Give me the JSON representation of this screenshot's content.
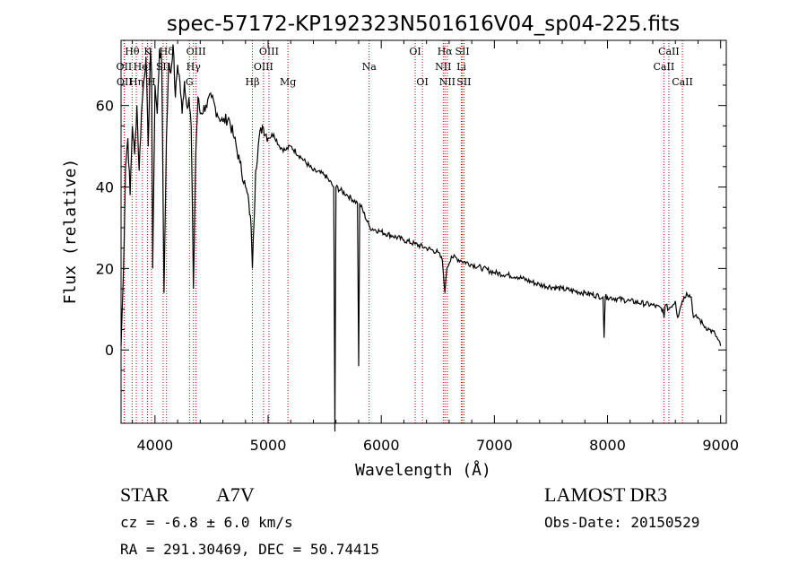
{
  "chart_data": {
    "type": "line",
    "title": "spec-57172-KP192323N501616V04_sp04-225.fits",
    "xlabel": "Wavelength (Å)",
    "ylabel": "Flux (relative)",
    "xlim": [
      3700,
      9050
    ],
    "ylim": [
      -18,
      76
    ],
    "xticks": [
      4000,
      5000,
      6000,
      7000,
      8000,
      9000
    ],
    "yticks": [
      0,
      20,
      40,
      60
    ],
    "line_color": "#000000",
    "marker_color": "#cc0000",
    "series": [
      {
        "name": "spectrum",
        "x": [
          3700,
          3720,
          3740,
          3760,
          3780,
          3800,
          3820,
          3840,
          3860,
          3880,
          3900,
          3920,
          3940,
          3960,
          3970,
          3980,
          4000,
          4020,
          4040,
          4060,
          4080,
          4101,
          4120,
          4140,
          4160,
          4180,
          4200,
          4220,
          4240,
          4260,
          4280,
          4300,
          4320,
          4340,
          4360,
          4380,
          4400,
          4450,
          4500,
          4550,
          4600,
          4650,
          4700,
          4750,
          4800,
          4830,
          4850,
          4861,
          4870,
          4890,
          4920,
          4950,
          5000,
          5050,
          5100,
          5150,
          5200,
          5300,
          5400,
          5500,
          5580,
          5590,
          5600,
          5700,
          5790,
          5800,
          5810,
          5900,
          6000,
          6100,
          6200,
          6300,
          6400,
          6500,
          6540,
          6563,
          6580,
          6620,
          6700,
          6800,
          6900,
          7000,
          7200,
          7400,
          7600,
          7800,
          7960,
          7970,
          7980,
          8000,
          8200,
          8400,
          8490,
          8500,
          8510,
          8540,
          8600,
          8620,
          8640,
          8660,
          8700,
          8740,
          8760,
          8800,
          8850,
          8900,
          8950,
          9000
        ],
        "y": [
          1,
          18,
          45,
          52,
          38,
          55,
          48,
          60,
          44,
          58,
          66,
          72,
          50,
          74,
          68,
          20,
          65,
          58,
          74,
          70,
          14,
          52,
          70,
          68,
          75,
          62,
          70,
          66,
          58,
          66,
          60,
          62,
          55,
          15,
          48,
          62,
          58,
          60,
          62,
          58,
          56,
          57,
          52,
          46,
          40,
          36,
          30,
          20,
          28,
          44,
          52,
          55,
          52,
          53,
          50,
          49,
          50,
          47,
          44,
          43,
          40,
          -20,
          40,
          38,
          36,
          -4,
          36,
          30,
          29,
          28,
          27,
          26,
          25,
          24,
          22,
          14,
          20,
          23,
          22,
          21,
          20,
          19,
          18,
          16,
          15,
          14,
          13,
          3,
          13,
          13,
          12,
          11,
          10,
          8,
          11,
          10,
          12,
          8,
          10,
          12,
          14,
          13,
          8,
          8,
          6,
          5,
          4,
          1
        ]
      }
    ],
    "line_markers": [
      {
        "label": "Hθ",
        "x": 3798,
        "row": 1
      },
      {
        "label": "OII",
        "x": 3727,
        "row": 2
      },
      {
        "label": "OII",
        "x": 3730,
        "row": 3
      },
      {
        "label": "Hη",
        "x": 3835,
        "row": 3
      },
      {
        "label": "K",
        "x": 3934,
        "row": 1
      },
      {
        "label": "HeI",
        "x": 3889,
        "row": 2
      },
      {
        "label": "H",
        "x": 3969,
        "row": 3
      },
      {
        "label": "Hδ",
        "x": 4102,
        "row": 1
      },
      {
        "label": "SII",
        "x": 4072,
        "row": 2
      },
      {
        "label": "OIII",
        "x": 4363,
        "row": 1
      },
      {
        "label": "Hγ",
        "x": 4340,
        "row": 2
      },
      {
        "label": "G",
        "x": 4305,
        "row": 3
      },
      {
        "label": "Hβ",
        "x": 4861,
        "row": 3
      },
      {
        "label": "OIII",
        "x": 5007,
        "row": 1
      },
      {
        "label": "OIII",
        "x": 4959,
        "row": 2
      },
      {
        "label": "Mg",
        "x": 5175,
        "row": 3
      },
      {
        "label": "Na",
        "x": 5893,
        "row": 2
      },
      {
        "label": "OI",
        "x": 6300,
        "row": 1
      },
      {
        "label": "OI",
        "x": 6364,
        "row": 3
      },
      {
        "label": "Hα",
        "x": 6563,
        "row": 1
      },
      {
        "label": "NII",
        "x": 6548,
        "row": 2
      },
      {
        "label": "NII",
        "x": 6584,
        "row": 3
      },
      {
        "label": "SII",
        "x": 6717,
        "row": 1
      },
      {
        "label": "Li",
        "x": 6708,
        "row": 2
      },
      {
        "label": "SII",
        "x": 6731,
        "row": 3
      },
      {
        "label": "CaII",
        "x": 8542,
        "row": 1
      },
      {
        "label": "CaII",
        "x": 8498,
        "row": 2
      },
      {
        "label": "CaII",
        "x": 8662,
        "row": 3
      }
    ]
  },
  "info": {
    "object_type": "STAR",
    "subclass": "A7V",
    "survey": "LAMOST DR3",
    "redshift": "cz = -6.8 ± 6.0 km/s",
    "obs_date": "Obs-Date: 20150529",
    "coords": "RA = 291.30469, DEC =  50.74415"
  }
}
